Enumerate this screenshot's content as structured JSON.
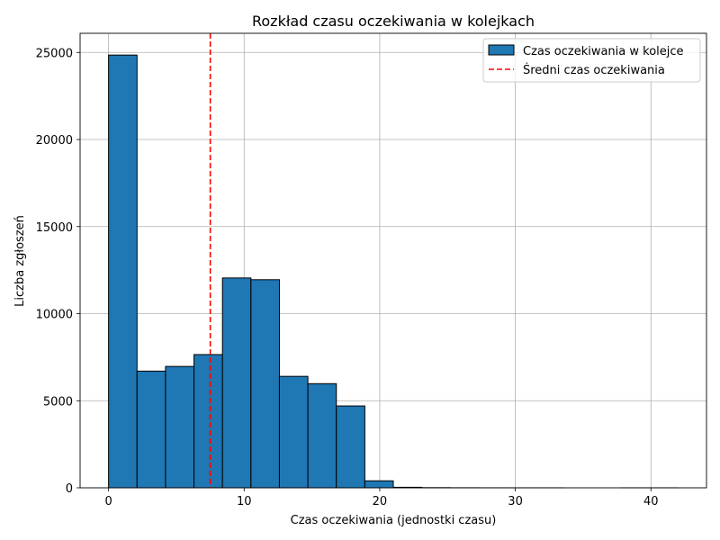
{
  "chart_data": {
    "type": "bar",
    "title": "Rozkład czasu oczekiwania w kolejkach",
    "xlabel": "Czas oczekiwania (jednostki czasu)",
    "ylabel": "Liczba zgłoszeń",
    "xlim": [
      -2.1,
      44.1
    ],
    "ylim": [
      0,
      26100
    ],
    "xticks": [
      0,
      10,
      20,
      30,
      40
    ],
    "yticks": [
      0,
      5000,
      10000,
      15000,
      20000,
      25000
    ],
    "grid": true,
    "legend_position": "top-right",
    "bins": [
      {
        "x0": 0.0,
        "x1": 2.1,
        "count": 24850
      },
      {
        "x0": 2.1,
        "x1": 4.2,
        "count": 6700
      },
      {
        "x0": 4.2,
        "x1": 6.3,
        "count": 6970
      },
      {
        "x0": 6.3,
        "x1": 8.4,
        "count": 7650
      },
      {
        "x0": 8.4,
        "x1": 10.5,
        "count": 12050
      },
      {
        "x0": 10.5,
        "x1": 12.6,
        "count": 11950
      },
      {
        "x0": 12.6,
        "x1": 14.7,
        "count": 6400
      },
      {
        "x0": 14.7,
        "x1": 16.8,
        "count": 5980
      },
      {
        "x0": 16.8,
        "x1": 18.9,
        "count": 4700
      },
      {
        "x0": 18.9,
        "x1": 21.0,
        "count": 400
      },
      {
        "x0": 21.0,
        "x1": 23.1,
        "count": 30
      },
      {
        "x0": 23.1,
        "x1": 25.2,
        "count": 10
      },
      {
        "x0": 25.2,
        "x1": 27.3,
        "count": 4
      },
      {
        "x0": 27.3,
        "x1": 29.4,
        "count": 2
      },
      {
        "x0": 29.4,
        "x1": 31.5,
        "count": 1
      },
      {
        "x0": 31.5,
        "x1": 33.6,
        "count": 1
      },
      {
        "x0": 33.6,
        "x1": 35.7,
        "count": 0
      },
      {
        "x0": 35.7,
        "x1": 37.8,
        "count": 0
      },
      {
        "x0": 37.8,
        "x1": 39.9,
        "count": 1
      },
      {
        "x0": 39.9,
        "x1": 42.0,
        "count": 1
      }
    ],
    "mean_line": {
      "x": 7.5
    },
    "series": [
      {
        "name": "Czas oczekiwania w kolejce",
        "kind": "bar",
        "color": "#1f77b4",
        "edgecolor": "#000000"
      },
      {
        "name": "Średni czas oczekiwania",
        "kind": "vline-dashed",
        "color": "#ff0000"
      }
    ]
  }
}
